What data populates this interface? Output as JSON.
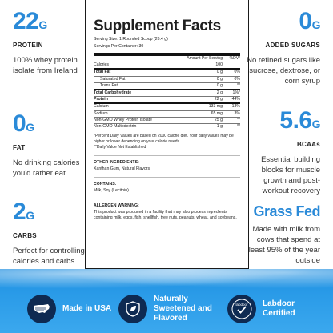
{
  "left": [
    {
      "value": "22",
      "unit": "G",
      "label": "PROTEIN",
      "desc": "100% whey protein isolate from Ireland"
    },
    {
      "value": "0",
      "unit": "G",
      "label": "FAT",
      "desc": "No drinking calories you'd rather eat"
    },
    {
      "value": "2",
      "unit": "G",
      "label": "CARBS",
      "desc": "Perfect for controlling calories and carbs"
    }
  ],
  "right": [
    {
      "value": "0",
      "unit": "G",
      "label": "ADDED SUGARS",
      "desc": "No refined sugars like sucrose, dextrose, or corn syrup"
    },
    {
      "value": "5.6",
      "unit": "G",
      "label": "BCAAs",
      "desc": "Essential building blocks for muscle growth and post-workout recovery"
    },
    {
      "value": "Grass Fed",
      "unit": "",
      "label": "",
      "desc": "Made with milk from cows that spend at least 95% of the year outside"
    }
  ],
  "facts": {
    "title": "Supplement Facts",
    "serving_size": "Serving Size: 1 Rounded Scoop (26.4 g)",
    "servings": "Servings Per Container: 30",
    "head_amount": "Amount Per Serving",
    "head_dv": "%DV*",
    "rows": [
      {
        "n": "Calories",
        "a": "100",
        "p": ""
      },
      {
        "n": "Total Fat",
        "a": "0 g",
        "p": "0%"
      },
      {
        "n": "Saturated Fat",
        "a": "0 g",
        "p": "0%"
      },
      {
        "n": "Trans Fat",
        "a": "0 g",
        "p": "**"
      },
      {
        "n": "Total Carbohydrate",
        "a": "2 g",
        "p": "1%*"
      },
      {
        "n": "Protein",
        "a": "22 g",
        "p": "44%"
      },
      {
        "n": "Calcium",
        "a": "133 mg",
        "p": "13%"
      },
      {
        "n": "Sodium",
        "a": "65 mg",
        "p": "3%"
      },
      {
        "n": "Non-GMO Whey Protein Isolate",
        "a": "25 g",
        "p": "**"
      },
      {
        "n": "Non-GMO Maltodextrin",
        "a": "1 g",
        "p": "**"
      }
    ],
    "note1": "*Percent Daily Values are based on 2000 calorie diet. Your daily values may be higher or lower depending on your calorie needs.",
    "note2": "**Daily Value Not Established",
    "other_title": "OTHER INGREDIENTS:",
    "other_text": "Xanthan Gum, Natural Flavors",
    "contains_title": "CONTAINS:",
    "contains_text": "Milk, Soy (Lecithin)",
    "allergen_title": "ALLERGEN WARNING:",
    "allergen_text": "This product was produced in a facility that may also process ingredients containing milk, eggs, fish, shellfish, tree nuts, peanuts, wheat, and soybeans."
  },
  "badges": [
    {
      "icon": "usa-map-icon",
      "text": "Made in USA"
    },
    {
      "icon": "leaf-shield-icon",
      "text": "Naturally Sweetened and Flavored"
    },
    {
      "icon": "labdoor-icon",
      "text": "Labdoor Certified",
      "icon_text": "labdoor"
    }
  ],
  "colors": {
    "accent": "#2a8ad8",
    "footer": "#2196e6",
    "badge_bg": "#0e2a52"
  }
}
